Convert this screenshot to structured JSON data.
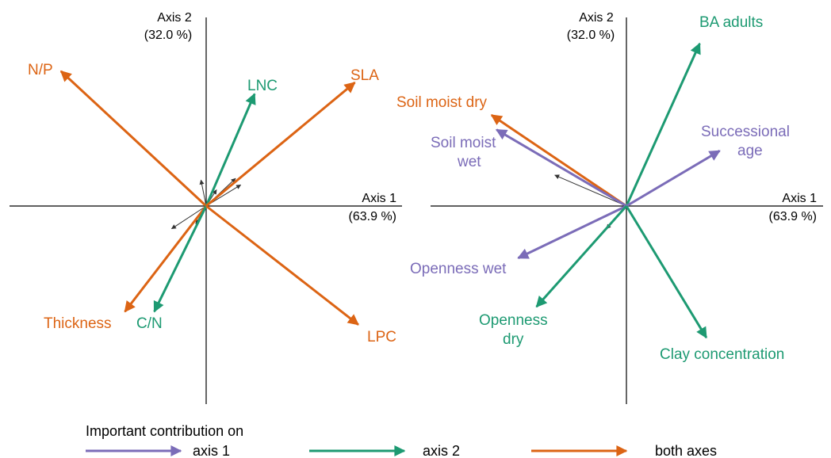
{
  "colors": {
    "axis1": "#7b6cb8",
    "axis2": "#1d9a72",
    "both": "#dc6414",
    "minor": "#333333",
    "axis_line": "#000000"
  },
  "chart_data": [
    {
      "type": "biplot",
      "axis1_label": "Axis 1",
      "axis1_pct": "(63.9 %)",
      "axis2_label": "Axis 2",
      "axis2_pct": "(32.0 %)",
      "vectors": [
        {
          "label": "N/P",
          "group": "both",
          "x": -0.84,
          "y": 0.83
        },
        {
          "label": "LNC",
          "group": "axis2",
          "x": 0.28,
          "y": 0.69
        },
        {
          "label": "SLA",
          "group": "both",
          "x": 0.86,
          "y": 0.76
        },
        {
          "label": "Thickness",
          "group": "both",
          "x": -0.47,
          "y": -0.65
        },
        {
          "label": "C/N",
          "group": "axis2",
          "x": -0.3,
          "y": -0.65
        },
        {
          "label": "LPC",
          "group": "both",
          "x": 0.88,
          "y": -0.73
        }
      ],
      "minor_vectors": [
        {
          "x": -0.2,
          "y": -0.14
        },
        {
          "x": -0.06,
          "y": -0.11
        },
        {
          "x": -0.03,
          "y": 0.16
        },
        {
          "x": 0.06,
          "y": 0.1
        },
        {
          "x": 0.17,
          "y": 0.17
        },
        {
          "x": 0.2,
          "y": 0.13
        }
      ]
    },
    {
      "type": "biplot",
      "axis1_label": "Axis 1",
      "axis1_pct": "(63.9 %)",
      "axis2_label": "Axis 2",
      "axis2_pct": "(32.0 %)",
      "vectors": [
        {
          "label": "BA adults",
          "group": "axis2",
          "x": 0.44,
          "y": 1.0
        },
        {
          "label": "Soil moist dry",
          "group": "both",
          "x": -0.81,
          "y": 0.56
        },
        {
          "label": "Soil moist wet",
          "group": "axis1",
          "x": -0.78,
          "y": 0.47
        },
        {
          "label": "Successional age",
          "group": "axis1",
          "x": 0.56,
          "y": 0.34
        },
        {
          "label": "Openness wet",
          "group": "axis1",
          "x": -0.65,
          "y": -0.32
        },
        {
          "label": "Openness dry",
          "group": "axis2",
          "x": -0.54,
          "y": -0.62
        },
        {
          "label": "Clay concentration",
          "group": "axis2",
          "x": 0.48,
          "y": -0.81
        }
      ],
      "minor_vectors": [
        {
          "x": -0.43,
          "y": 0.19
        },
        {
          "x": -0.12,
          "y": -0.14
        }
      ]
    }
  ],
  "legend": {
    "title": "Important contribution on",
    "items": [
      {
        "group": "axis1",
        "label": "axis 1"
      },
      {
        "group": "axis2",
        "label": "axis 2"
      },
      {
        "group": "both",
        "label": "both axes"
      }
    ]
  }
}
